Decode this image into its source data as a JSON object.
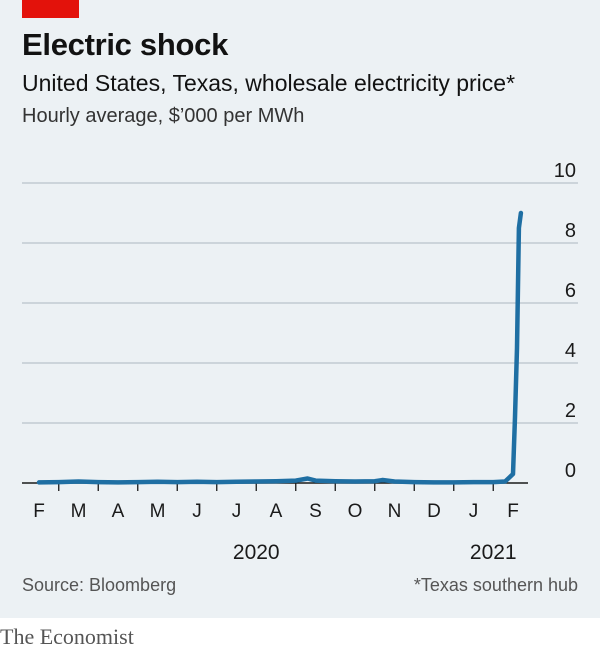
{
  "header": {
    "title": "Electric shock",
    "subtitle": "United States, Texas, wholesale electricity price*",
    "units": "Hourly average, $’000 per MWh"
  },
  "footer": {
    "source": "Source: Bloomberg",
    "footnote": "*Texas southern hub",
    "brand": "The Economist"
  },
  "colors": {
    "line": "#1f6fa3",
    "grid": "#b8c2c9",
    "axis": "#1a1a1a",
    "background": "#ecf1f4",
    "brand_tag": "#e3120b"
  },
  "chart_data": {
    "type": "line",
    "title": "Electric shock",
    "subtitle": "United States, Texas, wholesale electricity price*",
    "ylabel": "Hourly average, $’000 per MWh",
    "ylim": [
      0,
      10
    ],
    "yticks": [
      0,
      2,
      4,
      6,
      8,
      10
    ],
    "y_axis_side": "right",
    "grid": true,
    "month_labels": [
      "F",
      "M",
      "A",
      "M",
      "J",
      "J",
      "A",
      "S",
      "O",
      "N",
      "D",
      "J",
      "F"
    ],
    "year_labels": [
      {
        "label": "2020",
        "month_index": 5.5
      },
      {
        "label": "2021",
        "month_index": 11.5
      }
    ],
    "series": [
      {
        "x": [
          0,
          0.5,
          1,
          1.5,
          2,
          2.5,
          3,
          3.5,
          4,
          4.5,
          5,
          5.5,
          6,
          6.5,
          6.8,
          7,
          7.5,
          8,
          8.5,
          8.7,
          9,
          9.5,
          10,
          10.5,
          11,
          11.5,
          11.8,
          12.0,
          12.05,
          12.1,
          12.15,
          12.2
        ],
        "y": [
          0.02,
          0.03,
          0.05,
          0.03,
          0.02,
          0.03,
          0.04,
          0.03,
          0.04,
          0.03,
          0.04,
          0.05,
          0.06,
          0.08,
          0.15,
          0.08,
          0.06,
          0.05,
          0.06,
          0.1,
          0.05,
          0.03,
          0.02,
          0.02,
          0.03,
          0.03,
          0.05,
          0.3,
          2.2,
          4.5,
          8.5,
          9.0
        ]
      }
    ]
  }
}
